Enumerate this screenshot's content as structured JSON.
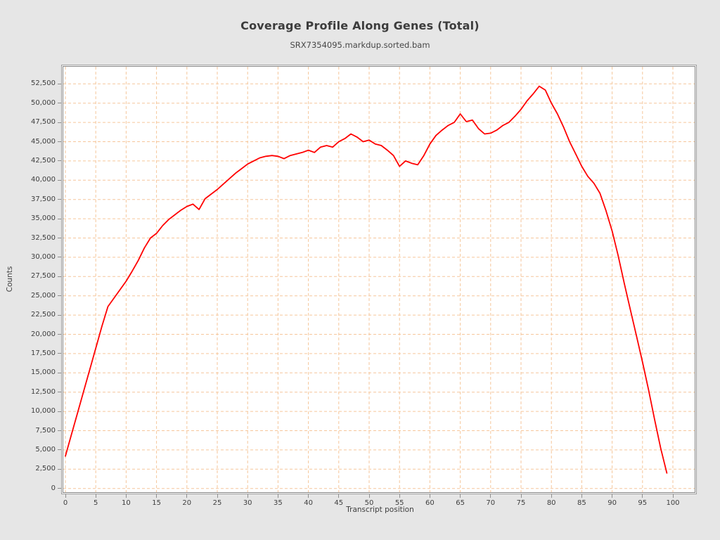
{
  "header": {
    "title": "Coverage Profile Along Genes (Total)",
    "subtitle": "SRX7354095.markdup.sorted.bam"
  },
  "chart_data": {
    "type": "line",
    "title": "Coverage Profile Along Genes (Total)",
    "subtitle": "SRX7354095.markdup.sorted.bam",
    "xlabel": "Transcript position",
    "ylabel": "Counts",
    "legend": "none",
    "grid": "dashed",
    "colors": {
      "background": "#e6e6e6",
      "plot_background": "#ffffff",
      "grid_color": "#f6c69b",
      "line_color": "#ff0000",
      "frame_color": "#8f8f8f",
      "text_color": "#3e3e3e"
    },
    "xlim": [
      -0.35,
      103.6
    ],
    "ylim": [
      0,
      54720
    ],
    "x_ticks": [
      0,
      5,
      10,
      15,
      20,
      25,
      30,
      35,
      40,
      45,
      50,
      55,
      60,
      65,
      70,
      75,
      80,
      85,
      90,
      95,
      100
    ],
    "x_tick_labels": [
      "0",
      "5",
      "10",
      "15",
      "20",
      "25",
      "30",
      "35",
      "40",
      "45",
      "50",
      "55",
      "60",
      "65",
      "70",
      "75",
      "80",
      "85",
      "90",
      "95",
      "100"
    ],
    "y_ticks": [
      0,
      2500,
      5000,
      7500,
      10000,
      12500,
      15000,
      17500,
      20000,
      22500,
      25000,
      27500,
      30000,
      32500,
      35000,
      37500,
      40000,
      42500,
      45000,
      47500,
      50000,
      52500
    ],
    "y_tick_labels": [
      "0",
      "2,500",
      "5,000",
      "7,500",
      "10,000",
      "12,500",
      "15,000",
      "17,500",
      "20,000",
      "22,500",
      "25,000",
      "27,500",
      "30,000",
      "32,500",
      "35,000",
      "37,500",
      "40,000",
      "42,500",
      "45,000",
      "47,500",
      "50,000",
      "52,500"
    ],
    "x": [
      0,
      1,
      2,
      3,
      4,
      5,
      6,
      7,
      8,
      9,
      10,
      11,
      12,
      13,
      14,
      15,
      16,
      17,
      18,
      19,
      20,
      21,
      22,
      23,
      24,
      25,
      26,
      27,
      28,
      29,
      30,
      31,
      32,
      33,
      34,
      35,
      36,
      37,
      38,
      39,
      40,
      41,
      42,
      43,
      44,
      45,
      46,
      47,
      48,
      49,
      50,
      51,
      52,
      53,
      54,
      55,
      56,
      57,
      58,
      59,
      60,
      61,
      62,
      63,
      64,
      65,
      66,
      67,
      68,
      69,
      70,
      71,
      72,
      73,
      74,
      75,
      76,
      77,
      78,
      79,
      80,
      81,
      82,
      83,
      84,
      85,
      86,
      87,
      88,
      89,
      90,
      91,
      92,
      93,
      94,
      95,
      96,
      97,
      98,
      99
    ],
    "series": [
      {
        "name": "SRX7354095.markdup.sorted.bam",
        "color": "#ff0000",
        "values": [
          4200,
          7000,
          9800,
          12600,
          15400,
          18200,
          21000,
          23600,
          24700,
          25800,
          26900,
          28200,
          29600,
          31200,
          32500,
          33100,
          34100,
          34900,
          35500,
          36100,
          36600,
          36900,
          36200,
          37600,
          38200,
          38800,
          39500,
          40200,
          40900,
          41500,
          42100,
          42500,
          42900,
          43100,
          43200,
          43100,
          42800,
          43200,
          43400,
          43600,
          43900,
          43600,
          44300,
          44500,
          44300,
          45000,
          45400,
          46000,
          45600,
          45000,
          45200,
          44700,
          44500,
          43900,
          43200,
          41800,
          42500,
          42200,
          42000,
          43200,
          44700,
          45800,
          46500,
          47100,
          47500,
          48600,
          47600,
          47800,
          46700,
          46000,
          46100,
          46500,
          47100,
          47500,
          48300,
          49200,
          50300,
          51200,
          52200,
          51700,
          50000,
          48600,
          46900,
          45000,
          43400,
          41800,
          40500,
          39600,
          38300,
          36000,
          33400,
          30200,
          26600,
          23200,
          19800,
          16400,
          12800,
          8900,
          5200,
          2000
        ]
      }
    ]
  }
}
